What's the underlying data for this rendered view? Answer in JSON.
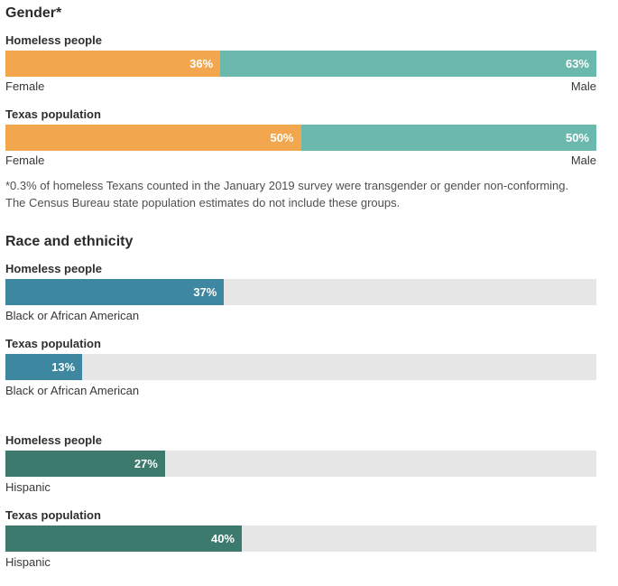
{
  "colors": {
    "female": "#F2A74E",
    "male": "#6BB8AC",
    "black_or_african_american": "#3E87A0",
    "hispanic": "#3D7A6E",
    "track": "#E6E6E6",
    "bar_value_text": "#FFFFFF"
  },
  "sections": {
    "gender": {
      "title": "Gender*",
      "footnote": "*0.3% of homeless Texans counted in the January 2019 survey were transgender or gender non-conforming. The Census Bureau state population estimates do not include these groups.",
      "groups": [
        {
          "label": "Homeless people",
          "left_axis_label": "Female",
          "right_axis_label": "Male",
          "segments": [
            {
              "name": "Female",
              "value": 36,
              "display": "36%",
              "color": "#F2A74E"
            },
            {
              "name": "Male",
              "value": 63,
              "display": "63%",
              "color": "#6BB8AC"
            }
          ]
        },
        {
          "label": "Texas population",
          "left_axis_label": "Female",
          "right_axis_label": "Male",
          "segments": [
            {
              "name": "Female",
              "value": 50,
              "display": "50%",
              "color": "#F2A74E"
            },
            {
              "name": "Male",
              "value": 50,
              "display": "50%",
              "color": "#6BB8AC"
            }
          ]
        }
      ]
    },
    "race": {
      "title": "Race and ethnicity",
      "groups": [
        {
          "label": "Homeless people",
          "category": "Black or African American",
          "value": 37,
          "display": "37%",
          "color": "#3E87A0",
          "spacer_before": false
        },
        {
          "label": "Texas population",
          "category": "Black or African American",
          "value": 13,
          "display": "13%",
          "color": "#3E87A0",
          "spacer_before": false
        },
        {
          "label": "Homeless people",
          "category": "Hispanic",
          "value": 27,
          "display": "27%",
          "color": "#3D7A6E",
          "spacer_before": true
        },
        {
          "label": "Texas population",
          "category": "Hispanic",
          "value": 40,
          "display": "40%",
          "color": "#3D7A6E",
          "spacer_before": false
        }
      ]
    }
  },
  "chart_data": [
    {
      "type": "bar",
      "subtype": "horizontal-stacked",
      "title": "Gender*",
      "unit": "%",
      "xlim": [
        0,
        100
      ],
      "categories": [
        "Homeless people",
        "Texas population"
      ],
      "series": [
        {
          "name": "Female",
          "values": [
            36,
            50
          ],
          "color": "#F2A74E"
        },
        {
          "name": "Male",
          "values": [
            63,
            50
          ],
          "color": "#6BB8AC"
        }
      ],
      "segment_end_labels": [
        "Female",
        "Male"
      ],
      "value_labels_inside_bars": true,
      "footnote": "*0.3% of homeless Texans counted in the January 2019 survey were transgender or gender non-conforming. The Census Bureau state population estimates do not include these groups."
    },
    {
      "type": "bar",
      "subtype": "horizontal",
      "title": "Race and ethnicity",
      "unit": "%",
      "xlim": [
        0,
        100
      ],
      "track_color": "#E6E6E6",
      "rows": [
        {
          "group": "Homeless people",
          "category": "Black or African American",
          "value": 37,
          "color": "#3E87A0"
        },
        {
          "group": "Texas population",
          "category": "Black or African American",
          "value": 13,
          "color": "#3E87A0"
        },
        {
          "group": "Homeless people",
          "category": "Hispanic",
          "value": 27,
          "color": "#3D7A6E"
        },
        {
          "group": "Texas population",
          "category": "Hispanic",
          "value": 40,
          "color": "#3D7A6E"
        }
      ],
      "value_labels_inside_bars": true
    }
  ]
}
